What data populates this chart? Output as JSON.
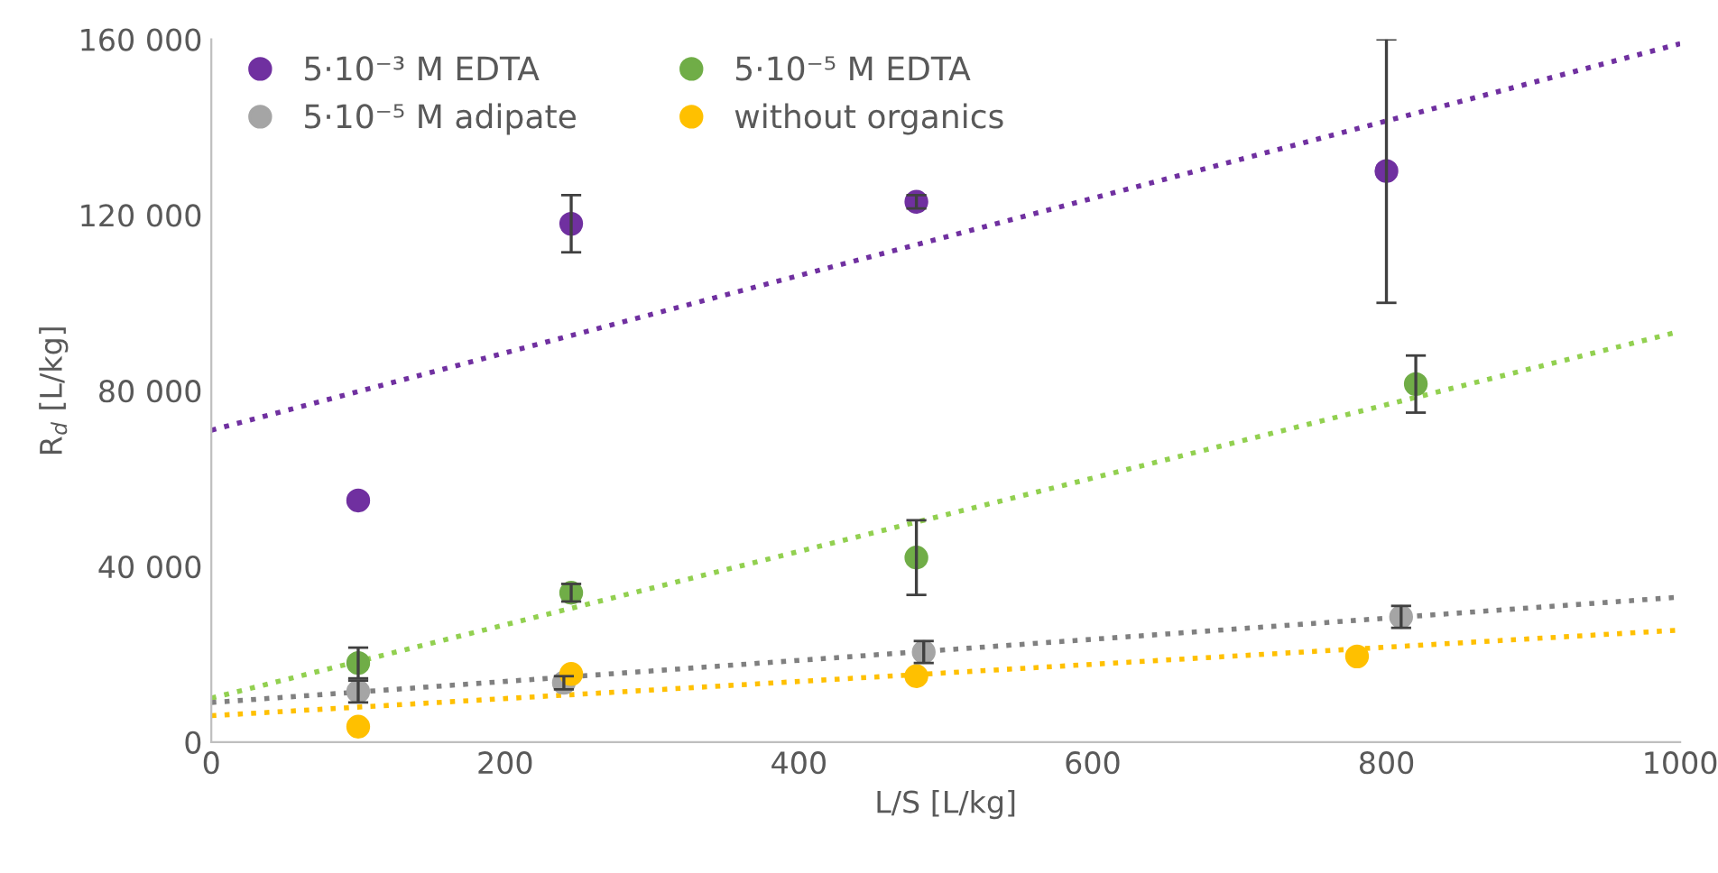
{
  "chart_data": {
    "type": "scatter",
    "xlabel": "L/S [L/kg]",
    "ylabel": "R$_{d}$ [L/kg]",
    "xlim": [
      0,
      1000
    ],
    "xticks": [
      0,
      200,
      400,
      600,
      800,
      1000
    ],
    "ylim": [
      0,
      160000
    ],
    "yticks": [
      {
        "value": 0,
        "label": "0"
      },
      {
        "value": 40000,
        "label": "40 000"
      },
      {
        "value": 80000,
        "label": "80 000"
      },
      {
        "value": 120000,
        "label": "120 000"
      },
      {
        "value": 160000,
        "label": "160 000"
      }
    ],
    "grid": false,
    "legend": "top left",
    "marker": "circle",
    "series": [
      {
        "name": "5·10⁻³ M EDTA",
        "color": "#7030a0",
        "x": [
          100,
          245,
          480,
          800
        ],
        "values": [
          55000,
          118000,
          123000,
          130000
        ],
        "errors": [
          null,
          6500,
          1500,
          [
            100000,
            160000
          ]
        ]
      },
      {
        "name": "5·10⁻⁵ M EDTA",
        "color": "#70ad47",
        "x": [
          100,
          245,
          480,
          820
        ],
        "values": [
          18000,
          34000,
          42000,
          81500
        ],
        "errors": [
          3500,
          2000,
          8500,
          6500
        ]
      },
      {
        "name": "5·10⁻⁵ M adipate",
        "color": "#a5a5a5",
        "x": [
          100,
          240,
          485,
          810
        ],
        "values": [
          11500,
          13500,
          20500,
          28500
        ],
        "errors": [
          2500,
          1500,
          2500,
          2500
        ]
      },
      {
        "name": "without organics",
        "color": "#ffc000",
        "x": [
          100,
          245,
          480,
          780
        ],
        "values": [
          3500,
          15500,
          15000,
          19500
        ]
      },
      {
        "type": "line",
        "marker": "none",
        "line_style": "dotted",
        "color": "#7030a0",
        "x": [
          0,
          1000
        ],
        "values": [
          71000,
          159000
        ]
      },
      {
        "type": "line",
        "marker": "none",
        "line_style": "dotted",
        "color": "#92d050",
        "x": [
          0,
          1000
        ],
        "values": [
          10000,
          93500
        ]
      },
      {
        "type": "line",
        "marker": "none",
        "line_style": "dotted",
        "color": "#808080",
        "x": [
          0,
          1000
        ],
        "values": [
          9000,
          33000
        ]
      },
      {
        "type": "line",
        "marker": "none",
        "line_style": "dotted",
        "color": "#ffc000",
        "x": [
          0,
          1000
        ],
        "values": [
          6000,
          25500
        ]
      }
    ]
  }
}
